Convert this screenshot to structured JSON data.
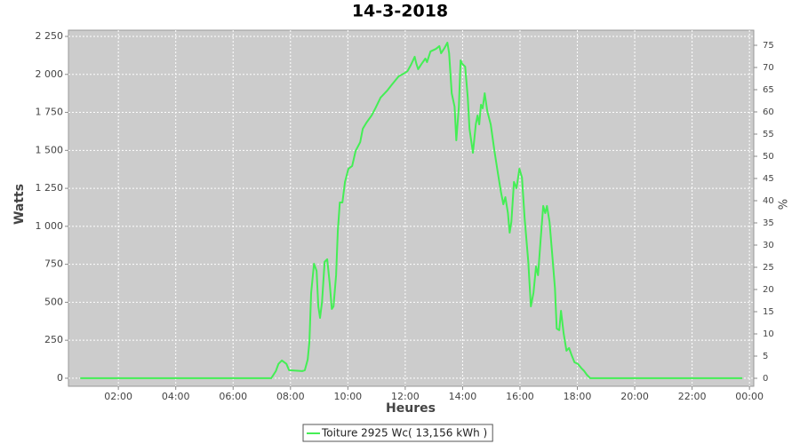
{
  "chart_data": {
    "type": "line",
    "title": "14-3-2018",
    "x_label": "Heures",
    "y_label": "Watts",
    "y2_label": "%",
    "grid": true,
    "xlim": [
      0.26,
      24.15
    ],
    "xticks": [
      {
        "value": 2,
        "label": "02:00"
      },
      {
        "value": 4,
        "label": "04:00"
      },
      {
        "value": 6,
        "label": "06:00"
      },
      {
        "value": 8,
        "label": "08:00"
      },
      {
        "value": 10,
        "label": "10:00"
      },
      {
        "value": 12,
        "label": "12:00"
      },
      {
        "value": 14,
        "label": "14:00"
      },
      {
        "value": 16,
        "label": "16:00"
      },
      {
        "value": 18,
        "label": "18:00"
      },
      {
        "value": 20,
        "label": "20:00"
      },
      {
        "value": 22,
        "label": "22:00"
      },
      {
        "value": 24,
        "label": "00:00"
      }
    ],
    "ylim": [
      -53,
      2291
    ],
    "yticks": [
      0,
      250,
      500,
      750,
      {
        "value": 1000,
        "label": "1 000"
      },
      {
        "value": 1250,
        "label": "1 250"
      },
      {
        "value": 1500,
        "label": "1 500"
      },
      {
        "value": 1750,
        "label": "1 750"
      },
      {
        "value": 2000,
        "label": "2 000"
      },
      {
        "value": 2250,
        "label": "2 250"
      }
    ],
    "y2lim": [
      -1.8,
      78.4
    ],
    "y2ticks": [
      0,
      5,
      10,
      15,
      20,
      25,
      30,
      35,
      40,
      45,
      50,
      55,
      60,
      65,
      70,
      75
    ],
    "x": [
      0.67,
      7.33,
      7.49,
      7.58,
      7.7,
      7.86,
      7.95,
      8.41,
      8.5,
      8.6,
      8.66,
      8.72,
      8.82,
      8.91,
      8.97,
      9.03,
      9.1,
      9.19,
      9.28,
      9.37,
      9.44,
      9.5,
      9.59,
      9.65,
      9.72,
      9.81,
      9.9,
      10.02,
      10.15,
      10.27,
      10.43,
      10.52,
      10.65,
      10.83,
      10.96,
      11.14,
      11.37,
      11.52,
      11.77,
      11.99,
      12.08,
      12.2,
      12.33,
      12.39,
      12.45,
      12.57,
      12.7,
      12.76,
      12.88,
      13.07,
      13.19,
      13.25,
      13.37,
      13.47,
      13.53,
      13.62,
      13.72,
      13.78,
      13.87,
      13.93,
      13.99,
      14.09,
      14.18,
      14.24,
      14.36,
      14.46,
      14.52,
      14.58,
      14.64,
      14.7,
      14.77,
      14.86,
      14.98,
      15.11,
      15.23,
      15.33,
      15.42,
      15.49,
      15.58,
      15.64,
      15.7,
      15.79,
      15.88,
      15.98,
      16.07,
      16.16,
      16.29,
      16.38,
      16.47,
      16.56,
      16.63,
      16.72,
      16.81,
      16.88,
      16.94,
      17.03,
      17.12,
      17.22,
      17.28,
      17.37,
      17.43,
      17.52,
      17.62,
      17.71,
      17.8,
      17.9,
      18.02,
      18.15,
      18.24,
      18.33,
      18.45,
      23.75
    ],
    "series": [
      {
        "name": "Toiture 2925 Wc( 13,156 kWh )",
        "color": "#44ee55",
        "values": [
          0,
          0,
          47,
          94,
          117,
          94,
          53,
          47,
          53,
          123,
          240,
          561,
          754,
          707,
          473,
          397,
          503,
          766,
          783,
          619,
          456,
          473,
          678,
          970,
          1157,
          1157,
          1292,
          1379,
          1397,
          1496,
          1554,
          1642,
          1683,
          1730,
          1777,
          1847,
          1893,
          1929,
          1987,
          2010,
          2022,
          2063,
          2116,
          2069,
          2034,
          2069,
          2104,
          2081,
          2151,
          2168,
          2186,
          2139,
          2174,
          2209,
          2139,
          1876,
          1788,
          1566,
          1788,
          2092,
          2069,
          2051,
          1847,
          1642,
          1484,
          1671,
          1730,
          1671,
          1800,
          1777,
          1876,
          1759,
          1671,
          1496,
          1350,
          1233,
          1145,
          1192,
          1087,
          958,
          1029,
          1292,
          1251,
          1379,
          1321,
          1058,
          766,
          473,
          561,
          736,
          678,
          912,
          1134,
          1087,
          1134,
          1029,
          824,
          590,
          327,
          316,
          444,
          298,
          181,
          199,
          152,
          105,
          94,
          64,
          47,
          23,
          0,
          0
        ]
      }
    ]
  }
}
